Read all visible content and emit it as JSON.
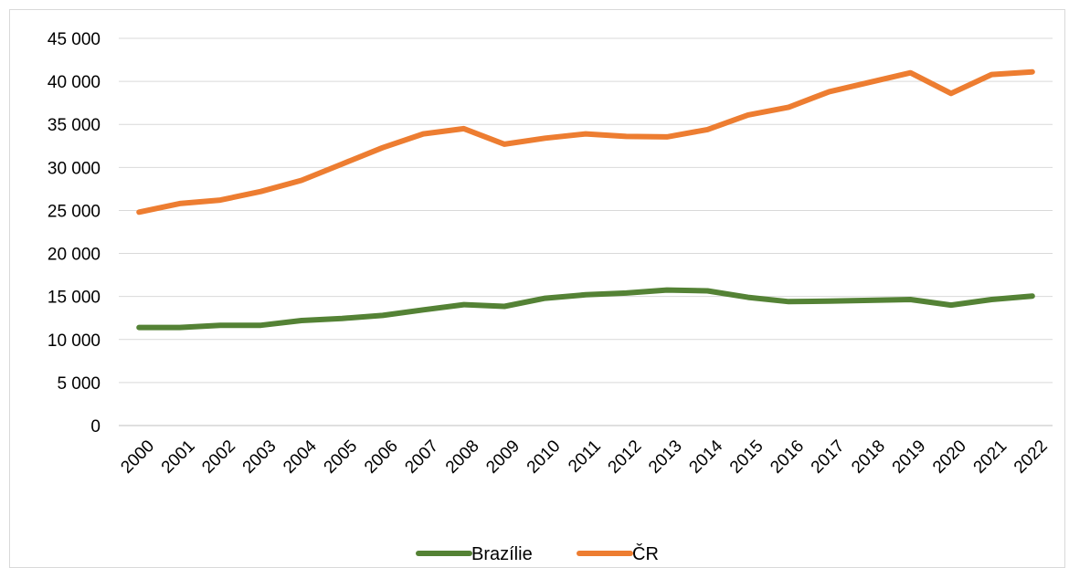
{
  "chart_data": {
    "type": "line",
    "title": "",
    "xlabel": "",
    "ylabel": "",
    "categories": [
      "2000",
      "2001",
      "2002",
      "2003",
      "2004",
      "2005",
      "2006",
      "2007",
      "2008",
      "2009",
      "2010",
      "2011",
      "2012",
      "2013",
      "2014",
      "2015",
      "2016",
      "2017",
      "2018",
      "2019",
      "2020",
      "2021",
      "2022"
    ],
    "series": [
      {
        "name": "Brazílie",
        "color": "#548235",
        "values": [
          11400,
          11400,
          11650,
          11650,
          12200,
          12450,
          12800,
          13450,
          14050,
          13850,
          14800,
          15200,
          15400,
          15750,
          15650,
          14900,
          14400,
          14450,
          14550,
          14650,
          14000,
          14650,
          15050
        ]
      },
      {
        "name": "ČR",
        "color": "#ED7D31",
        "values": [
          24800,
          25800,
          26200,
          27200,
          28500,
          30400,
          32300,
          33900,
          34500,
          32700,
          33400,
          33900,
          33600,
          33550,
          34400,
          36100,
          37000,
          38800,
          39900,
          41000,
          38600,
          40800,
          41100
        ]
      }
    ],
    "ylim": [
      0,
      45000
    ],
    "y_ticks": [
      "0",
      "5 000",
      "10 000",
      "15 000",
      "20 000",
      "25 000",
      "30 000",
      "35 000",
      "40 000",
      "45 000"
    ],
    "grid": true,
    "legend_position": "bottom"
  }
}
